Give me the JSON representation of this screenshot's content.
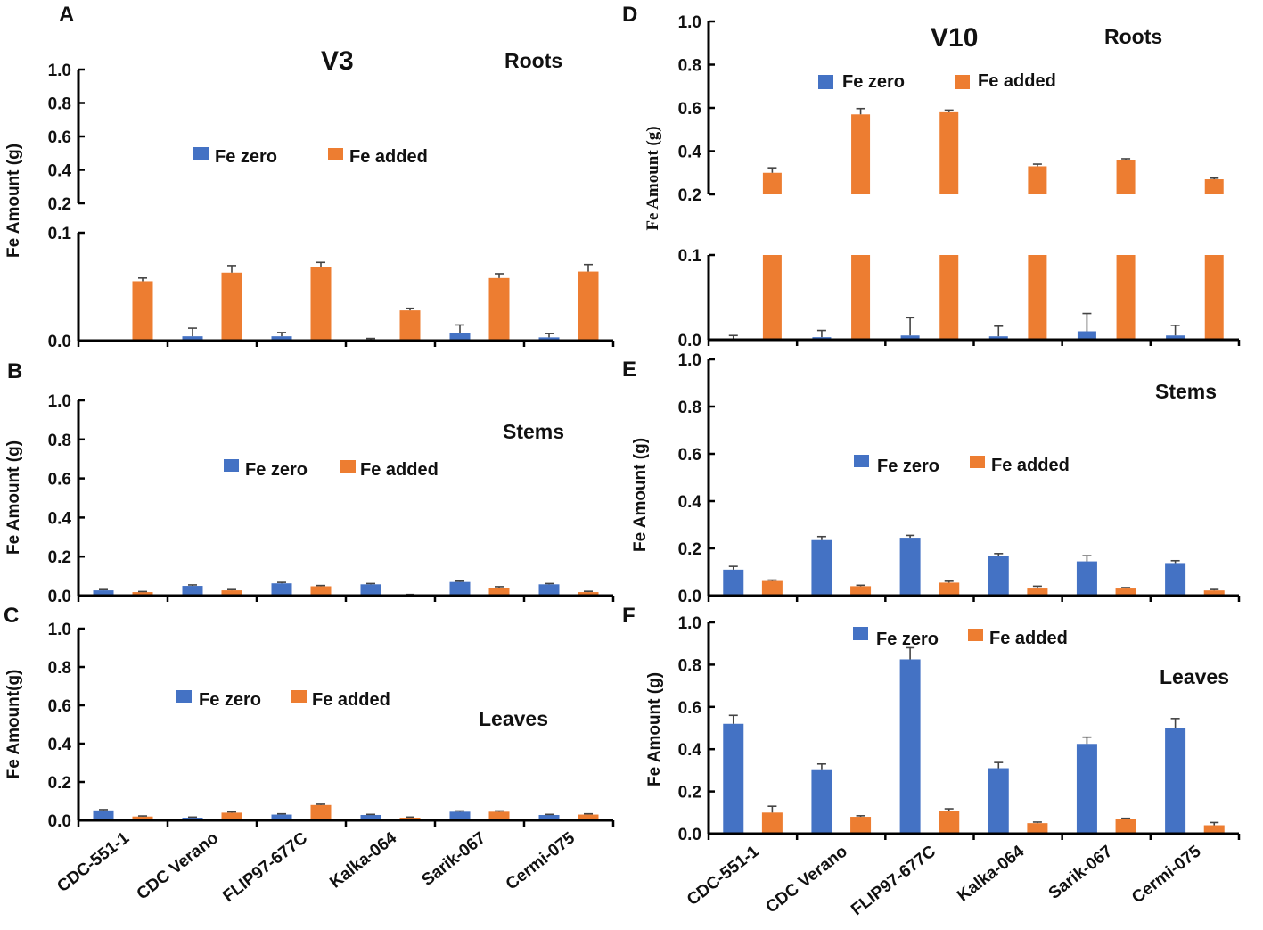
{
  "colors": {
    "fe_zero": "#4472C4",
    "fe_added": "#ED7D31",
    "error": "#444444"
  },
  "legend": {
    "fe_zero": "Fe zero",
    "fe_added": "Fe added"
  },
  "stages": {
    "left": "V3",
    "right": "V10"
  },
  "panel_letters": {
    "A": "A",
    "B": "B",
    "C": "C",
    "D": "D",
    "E": "E",
    "F": "F"
  },
  "categories": [
    "CDC-551-1",
    "CDC Verano",
    "FLIP97-677C",
    "Kalka-064",
    "Sarik-067",
    "Cermi-075"
  ],
  "chart_data": [
    {
      "id": "A",
      "type": "bar",
      "stage": "V3",
      "organ": "Roots",
      "ylabel": "Fe Amount (g)",
      "broken_axis": true,
      "lower_ylim": [
        0,
        0.1
      ],
      "upper_ylim": [
        0.2,
        1.0
      ],
      "lower_ticks": [
        "0.0",
        "0.1"
      ],
      "upper_ticks": [
        "0.2",
        "0.4",
        "0.6",
        "0.8",
        "1.0"
      ],
      "categories": [
        "CDC-551-1",
        "CDC Verano",
        "FLIP97-677C",
        "Kalka-064",
        "Sarik-067",
        "Cermi-075"
      ],
      "series": [
        {
          "name": "Fe zero",
          "values": [
            0.0,
            0.004,
            0.004,
            0.0,
            0.007,
            0.003
          ],
          "errors": [
            0.0,
            0.0075,
            0.0035,
            0.002,
            0.0075,
            0.0035
          ]
        },
        {
          "name": "Fe added",
          "values": [
            0.055,
            0.063,
            0.068,
            0.028,
            0.058,
            0.064
          ],
          "errors": [
            0.003,
            0.0065,
            0.0045,
            0.002,
            0.004,
            0.0065
          ]
        }
      ]
    },
    {
      "id": "B",
      "type": "bar",
      "stage": "V3",
      "organ": "Stems",
      "ylabel": "Fe Amount (g)",
      "ylim": [
        0,
        1.0
      ],
      "ticks": [
        "0.0",
        "0.2",
        "0.4",
        "0.6",
        "0.8",
        "1.0"
      ],
      "categories": [
        "CDC-551-1",
        "CDC Verano",
        "FLIP97-677C",
        "Kalka-064",
        "Sarik-067",
        "Cermi-075"
      ],
      "series": [
        {
          "name": "Fe zero",
          "values": [
            0.027,
            0.05,
            0.063,
            0.058,
            0.07,
            0.058
          ],
          "errors": [
            0.004,
            0.005,
            0.005,
            0.004,
            0.004,
            0.004
          ]
        },
        {
          "name": "Fe added",
          "values": [
            0.018,
            0.027,
            0.048,
            0.004,
            0.04,
            0.018
          ],
          "errors": [
            0.003,
            0.004,
            0.004,
            0.002,
            0.006,
            0.004
          ]
        }
      ]
    },
    {
      "id": "C",
      "type": "bar",
      "stage": "V3",
      "organ": "Leaves",
      "ylabel": "Fe Amount(g)",
      "ylim": [
        0,
        1.0
      ],
      "ticks": [
        "0.0",
        "0.2",
        "0.4",
        "0.6",
        "0.8",
        "1.0"
      ],
      "categories": [
        "CDC-551-1",
        "CDC Verano",
        "FLIP97-677C",
        "Kalka-064",
        "Sarik-067",
        "Cermi-075"
      ],
      "series": [
        {
          "name": "Fe zero",
          "values": [
            0.052,
            0.014,
            0.03,
            0.028,
            0.045,
            0.028
          ],
          "errors": [
            0.004,
            0.003,
            0.004,
            0.003,
            0.004,
            0.003
          ]
        },
        {
          "name": "Fe added",
          "values": [
            0.02,
            0.04,
            0.08,
            0.014,
            0.045,
            0.03
          ],
          "errors": [
            0.003,
            0.004,
            0.004,
            0.003,
            0.004,
            0.004
          ]
        }
      ]
    },
    {
      "id": "D",
      "type": "bar",
      "stage": "V10",
      "organ": "Roots",
      "ylabel": "Fe Amount (g)",
      "broken_axis": true,
      "lower_ylim": [
        0,
        0.1
      ],
      "upper_ylim": [
        0.2,
        1.0
      ],
      "lower_ticks": [
        "0.0",
        "0.1"
      ],
      "upper_ticks": [
        "0.2",
        "0.4",
        "0.6",
        "0.8",
        "1.0"
      ],
      "categories": [
        "CDC-551-1",
        "CDC Verano",
        "FLIP97-677C",
        "Kalka-064",
        "Sarik-067",
        "Cermi-075"
      ],
      "series": [
        {
          "name": "Fe zero",
          "values": [
            0.0,
            0.003,
            0.005,
            0.004,
            0.01,
            0.005
          ],
          "errors": [
            0.005,
            0.008,
            0.021,
            0.012,
            0.021,
            0.012
          ]
        },
        {
          "name": "Fe added",
          "values": [
            0.3,
            0.57,
            0.58,
            0.33,
            0.36,
            0.27
          ],
          "errors": [
            0.023,
            0.027,
            0.01,
            0.01,
            0.005,
            0.005
          ]
        }
      ]
    },
    {
      "id": "E",
      "type": "bar",
      "stage": "V10",
      "organ": "Stems",
      "ylabel": "Fe Amount (g)",
      "ylim": [
        0,
        1.0
      ],
      "ticks": [
        "0.0",
        "0.2",
        "0.4",
        "0.6",
        "0.8",
        "1.0"
      ],
      "categories": [
        "CDC-551-1",
        "CDC Verano",
        "FLIP97-677C",
        "Kalka-064",
        "Sarik-067",
        "Cermi-075"
      ],
      "series": [
        {
          "name": "Fe zero",
          "values": [
            0.11,
            0.235,
            0.245,
            0.168,
            0.145,
            0.138
          ],
          "errors": [
            0.014,
            0.015,
            0.01,
            0.01,
            0.024,
            0.01
          ]
        },
        {
          "name": "Fe added",
          "values": [
            0.062,
            0.04,
            0.055,
            0.03,
            0.03,
            0.022
          ],
          "errors": [
            0.004,
            0.004,
            0.006,
            0.01,
            0.004,
            0.004
          ]
        }
      ]
    },
    {
      "id": "F",
      "type": "bar",
      "stage": "V10",
      "organ": "Leaves",
      "ylabel": "Fe Amount (g)",
      "ylim": [
        0,
        1.0
      ],
      "ticks": [
        "0.0",
        "0.2",
        "0.4",
        "0.6",
        "0.8",
        "1.0"
      ],
      "categories": [
        "CDC-551-1",
        "CDC Verano",
        "FLIP97-677C",
        "Kalka-064",
        "Sarik-067",
        "Cermi-075"
      ],
      "series": [
        {
          "name": "Fe zero",
          "values": [
            0.52,
            0.305,
            0.825,
            0.31,
            0.425,
            0.5
          ],
          "errors": [
            0.04,
            0.025,
            0.055,
            0.027,
            0.032,
            0.045
          ]
        },
        {
          "name": "Fe added",
          "values": [
            0.1,
            0.08,
            0.108,
            0.05,
            0.068,
            0.04
          ],
          "errors": [
            0.03,
            0.005,
            0.01,
            0.005,
            0.005,
            0.013
          ]
        }
      ]
    }
  ]
}
